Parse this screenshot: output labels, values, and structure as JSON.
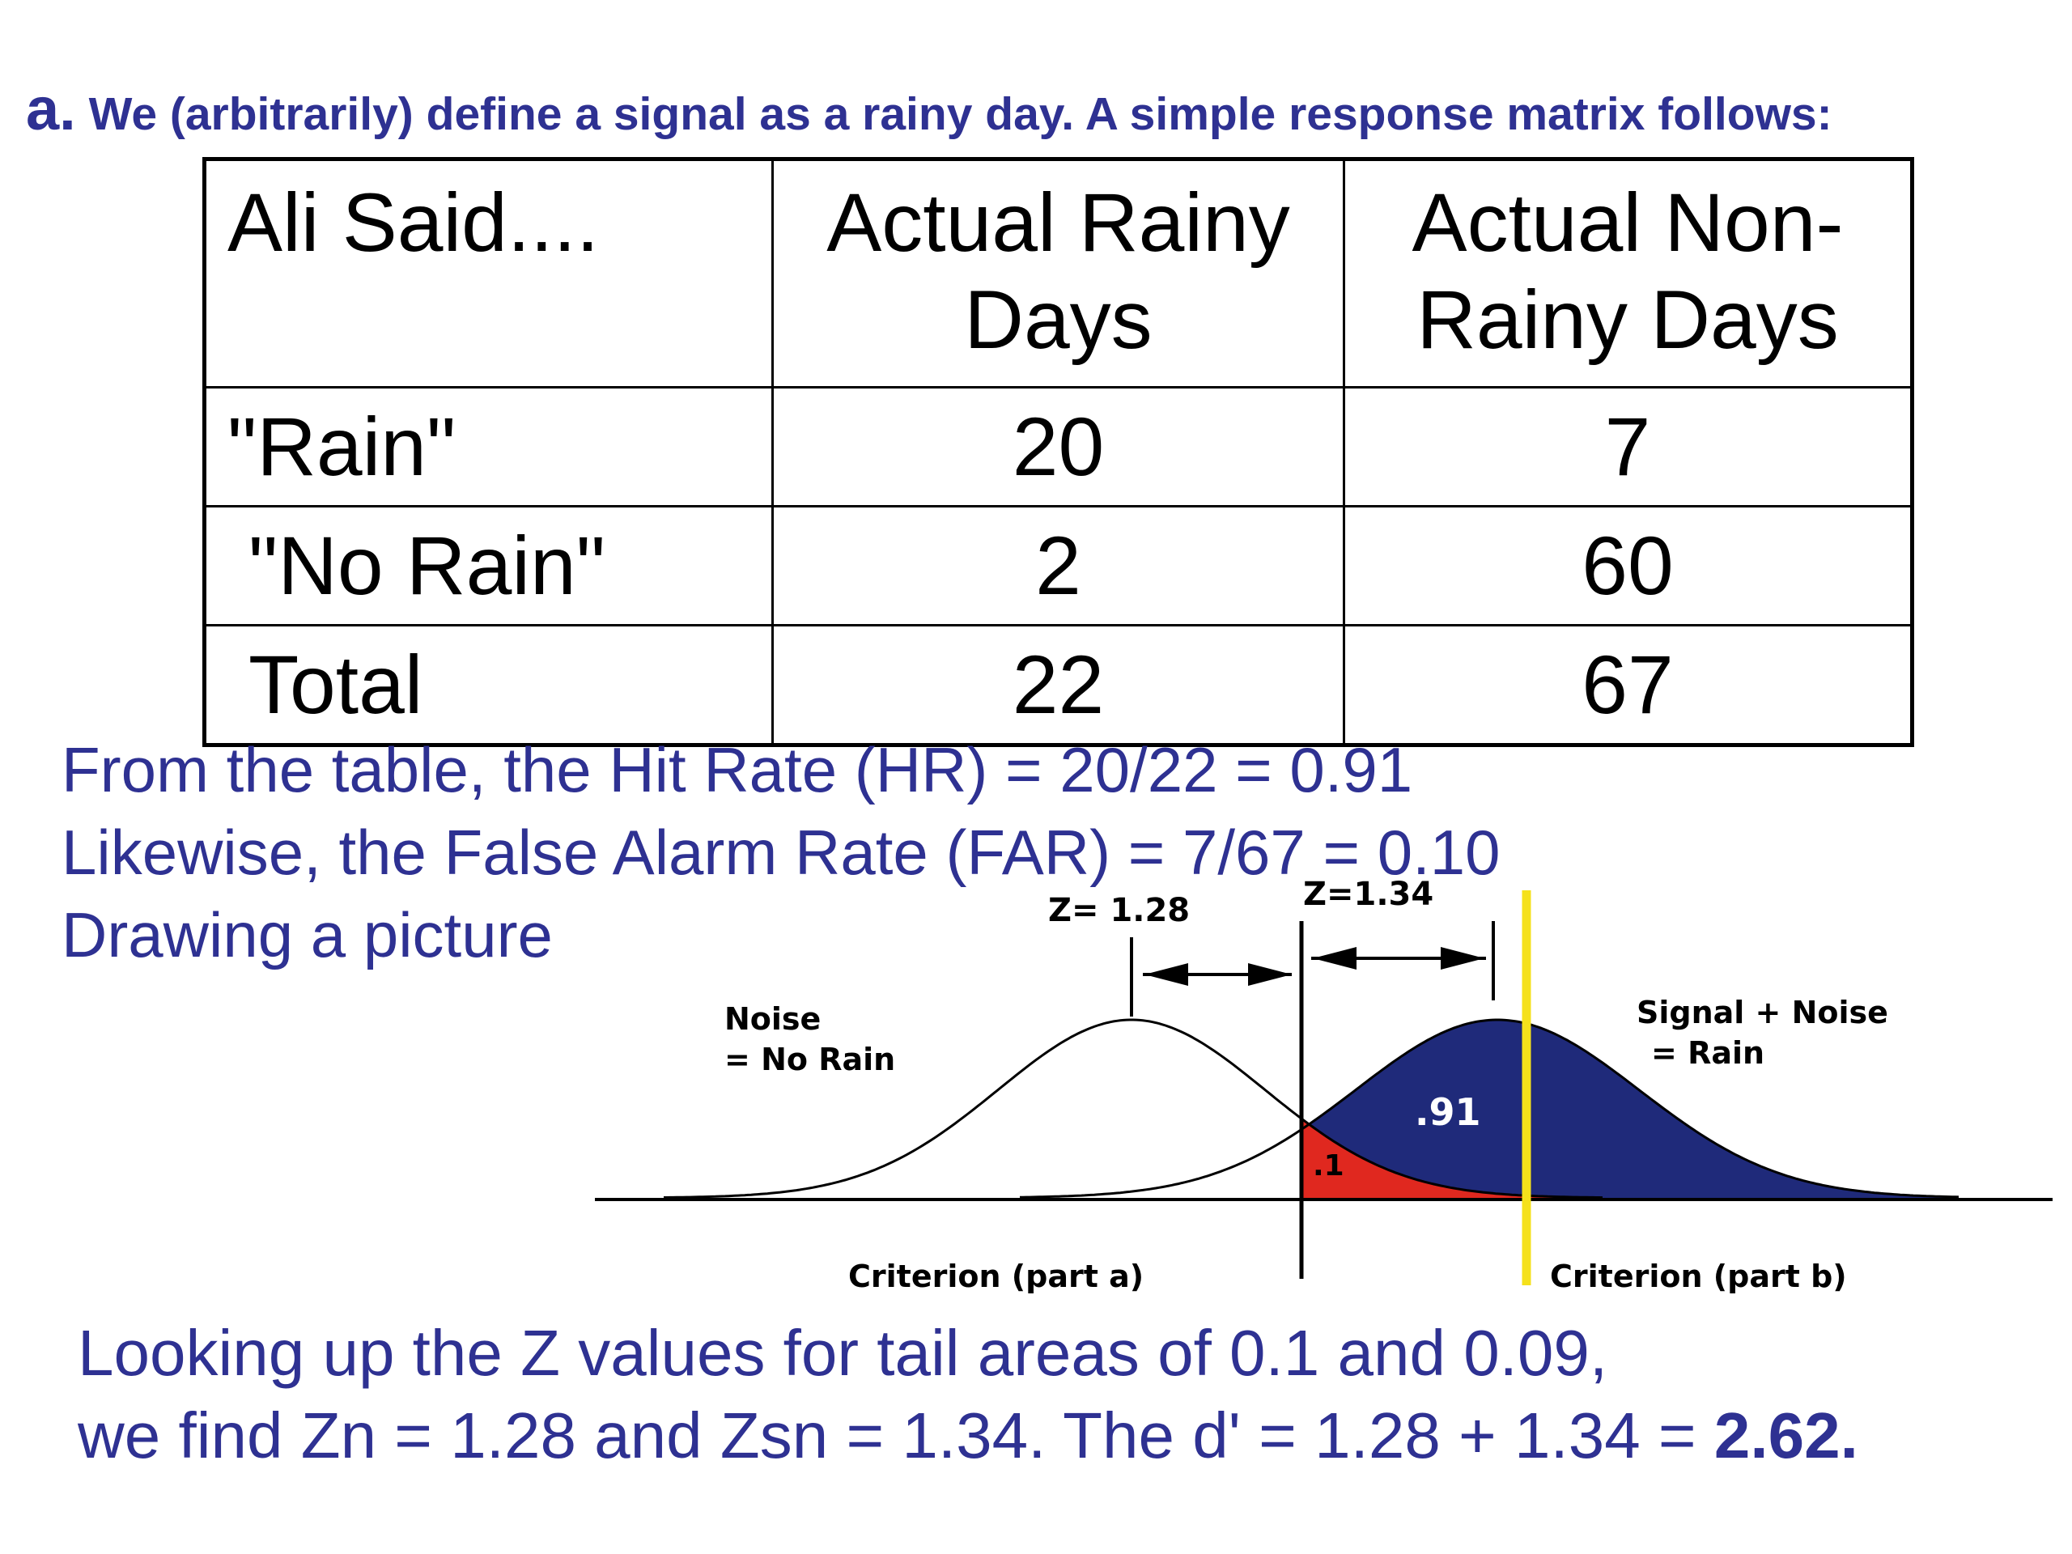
{
  "heading": {
    "letter": "a.",
    "text": "We (arbitrarily) define a signal as a rainy day. A simple response matrix follows:"
  },
  "matrix": {
    "header": {
      "col0": "Ali Said....",
      "col1_line1": "Actual Rainy",
      "col1_line2": "Days",
      "col2_line1": "Actual Non-",
      "col2_line2": "Rainy Days"
    },
    "rows": [
      {
        "label": "\"Rain\"",
        "rainy": "20",
        "nonrainy": "7"
      },
      {
        "label": "\"No Rain\"",
        "rainy": "2",
        "nonrainy": "60"
      },
      {
        "label": "Total",
        "rainy": "22",
        "nonrainy": "67"
      }
    ]
  },
  "calc": {
    "line1": "From the table, the Hit Rate (HR) = 20/22 = 0.91",
    "line2": "Likewise, the False Alarm Rate (FAR) = 7/67 = 0.10",
    "line3": "Drawing a picture"
  },
  "diagram": {
    "z_noise_label": "Z= 1.28",
    "z_signal_label": "Z=1.34",
    "noise_label_line1": "Noise",
    "noise_label_line2": "= No Rain",
    "signal_label_line1": "Signal + Noise",
    "signal_label_line2": "= Rain",
    "hit_area_label": ".91",
    "fa_area_label": ".1",
    "criterion_a_label": "Criterion (part a)",
    "criterion_b_label": "Criterion (part b)",
    "colors": {
      "signal_fill": "#1f2a7a",
      "false_alarm_fill": "#e0281f",
      "criterion_b_line": "#f5e11b"
    }
  },
  "footer": {
    "line1": "Looking up the Z values for tail areas of 0.1 and 0.09,",
    "line2_prefix": "we find Zn = 1.28 and Zsn = 1.34. The d' = 1.28 + 1.34 = ",
    "line2_bold": "2.62."
  }
}
